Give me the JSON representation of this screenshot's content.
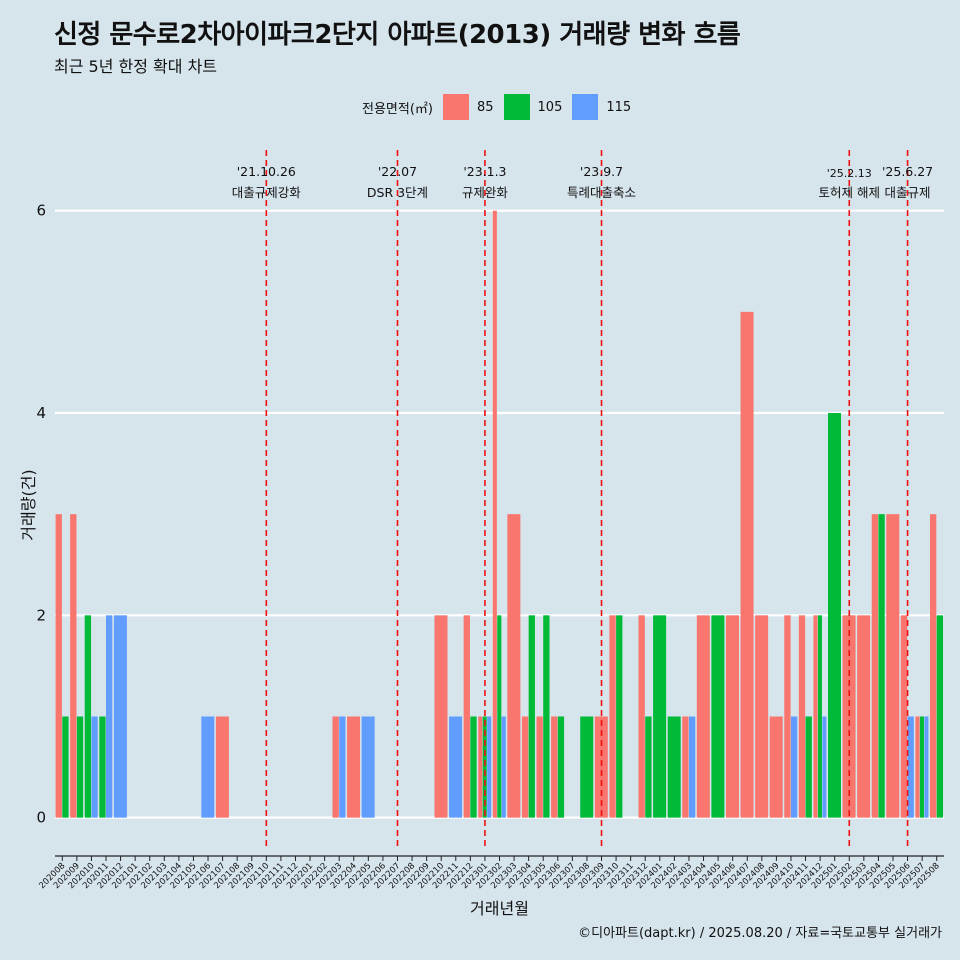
{
  "title": "신정 문수로2차아이파크2단지 아파트(2013) 거래량 변화 흐름",
  "subtitle": "최근 5년 한정 확대 차트",
  "caption": "©디아파트(dapt.kr) / 2025.08.20 / 자료=국토교통부 실거래가",
  "colors": {
    "background": "#d6e4ec",
    "grid": "#ffffff",
    "event_line": "#ee1111",
    "area_85": "#f8766d",
    "area_105": "#00ba38",
    "area_115": "#619cff"
  },
  "chart_data": {
    "type": "bar",
    "xlabel": "거래년월",
    "ylabel": "거래량(건)",
    "ylim": [
      -0.3,
      6.6
    ],
    "yticks": [
      0,
      2,
      4,
      6
    ],
    "grid": true,
    "legend": {
      "title": "전용면적(㎡)",
      "placement": "top",
      "entries": [
        "85",
        "105",
        "115"
      ]
    },
    "categories": [
      "202008",
      "202009",
      "202010",
      "202011",
      "202012",
      "202101",
      "202102",
      "202103",
      "202104",
      "202105",
      "202106",
      "202107",
      "202108",
      "202109",
      "202110",
      "202111",
      "202112",
      "202201",
      "202202",
      "202203",
      "202204",
      "202205",
      "202206",
      "202207",
      "202208",
      "202209",
      "202210",
      "202211",
      "202212",
      "202301",
      "202302",
      "202303",
      "202304",
      "202305",
      "202306",
      "202307",
      "202308",
      "202309",
      "202310",
      "202311",
      "202312",
      "202401",
      "202402",
      "202403",
      "202404",
      "202405",
      "202406",
      "202407",
      "202408",
      "202409",
      "202410",
      "202411",
      "202412",
      "202501",
      "202502",
      "202503",
      "202504",
      "202505",
      "202506",
      "202507",
      "202508"
    ],
    "series": [
      {
        "name": "85",
        "values": [
          3,
          3,
          0,
          0,
          0,
          0,
          0,
          0,
          0,
          0,
          0,
          1,
          0,
          0,
          0,
          0,
          0,
          0,
          0,
          1,
          1,
          0,
          0,
          0,
          0,
          0,
          2,
          0,
          2,
          1,
          6,
          3,
          1,
          1,
          1,
          0,
          0,
          1,
          2,
          0,
          2,
          0,
          0,
          1,
          2,
          0,
          2,
          5,
          2,
          1,
          2,
          2,
          2,
          0,
          2,
          2,
          3,
          3,
          2,
          1,
          3
        ]
      },
      {
        "name": "105",
        "values": [
          1,
          1,
          2,
          1,
          0,
          0,
          0,
          0,
          0,
          0,
          0,
          0,
          0,
          0,
          0,
          0,
          0,
          0,
          0,
          0,
          0,
          0,
          0,
          0,
          0,
          0,
          0,
          0,
          1,
          1,
          2,
          0,
          2,
          2,
          1,
          0,
          1,
          0,
          2,
          0,
          1,
          2,
          1,
          0,
          0,
          2,
          0,
          0,
          0,
          0,
          0,
          1,
          2,
          4,
          0,
          0,
          3,
          0,
          0,
          1,
          2
        ]
      },
      {
        "name": "115",
        "values": [
          0,
          0,
          1,
          2,
          2,
          0,
          0,
          0,
          0,
          0,
          1,
          0,
          0,
          0,
          0,
          0,
          0,
          0,
          0,
          1,
          0,
          1,
          0,
          0,
          0,
          0,
          0,
          1,
          0,
          1,
          1,
          0,
          0,
          0,
          0,
          0,
          0,
          0,
          0,
          0,
          0,
          0,
          0,
          1,
          0,
          0,
          0,
          0,
          0,
          0,
          1,
          0,
          1,
          0,
          0,
          0,
          0,
          0,
          1,
          1,
          0
        ]
      }
    ],
    "events": [
      {
        "x": "202110",
        "date": "'21.10.26",
        "label": "대출규제강화"
      },
      {
        "x": "202207",
        "date": "'22.07",
        "label": "DSR 3단계"
      },
      {
        "x": "202301",
        "date": "'23.1.3",
        "label": "규제완화"
      },
      {
        "x": "202309",
        "date": "'23.9.7",
        "label": "특례대출축소"
      },
      {
        "x": "202502",
        "date": "'25.2.13",
        "label": "토허제 해제"
      },
      {
        "x": "202506",
        "date": "'25.6.27",
        "label": "대출규제"
      }
    ]
  }
}
